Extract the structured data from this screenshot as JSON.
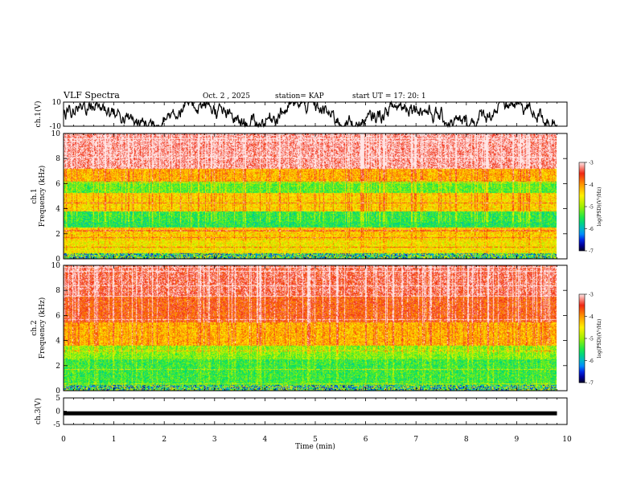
{
  "header": {
    "title": "VLF Spectra",
    "date": "Oct. 2 , 2025",
    "station": "station= KAP",
    "start": "start UT =  17: 20: 1"
  },
  "chart_data": [
    {
      "type": "line",
      "name": "ch1-waveform",
      "ylabel": "ch.1(V)",
      "ylim": [
        -10,
        10
      ],
      "yticks": [
        "10",
        "-10"
      ],
      "xlim": [
        0,
        10
      ]
    },
    {
      "type": "heatmap",
      "name": "ch1-spectrogram",
      "ylabel": "ch.1\nFrequency (kHz)",
      "ylabel_lines": [
        "ch.1",
        "Frequency (kHz)"
      ],
      "ylim": [
        0,
        10
      ],
      "yticks": [
        "0",
        "2",
        "4",
        "6",
        "8",
        "10"
      ],
      "xlim": [
        0,
        10
      ],
      "data_extent_min": 9.8,
      "colorbar": {
        "label": "log(PSD)(V²/Hz)",
        "ticks": [
          "-3",
          "-4",
          "-5",
          "-6",
          "-7"
        ],
        "range": [
          -7,
          -3
        ]
      },
      "bands_khz": [
        [
          0,
          0.5,
          -6.2
        ],
        [
          0.5,
          1.5,
          -4.6
        ],
        [
          1.5,
          2.5,
          -4.4
        ],
        [
          2.5,
          3.8,
          -5.6
        ],
        [
          3.8,
          5.3,
          -4.5
        ],
        [
          5.3,
          6.2,
          -5.4
        ],
        [
          6.2,
          7.2,
          -4.3
        ],
        [
          7.2,
          10,
          -3.3
        ]
      ]
    },
    {
      "type": "heatmap",
      "name": "ch2-spectrogram",
      "ylabel": "ch.2\nFrequency (kHz)",
      "ylabel_lines": [
        "ch.2",
        "Frequency (kHz)"
      ],
      "ylim": [
        0,
        10
      ],
      "yticks": [
        "0",
        "2",
        "4",
        "6",
        "8",
        "10"
      ],
      "xlim": [
        0,
        10
      ],
      "data_extent_min": 9.8,
      "colorbar": {
        "label": "log(PSD)(V²/Hz)",
        "ticks": [
          "-3",
          "-4",
          "-5",
          "-6",
          "-7"
        ],
        "range": [
          -7,
          -3
        ]
      },
      "bands_khz": [
        [
          0,
          0.5,
          -6.4
        ],
        [
          0.5,
          2.5,
          -5.5
        ],
        [
          2.5,
          3.6,
          -5.2
        ],
        [
          3.6,
          5.5,
          -4.3
        ],
        [
          5.5,
          7.5,
          -3.8
        ],
        [
          7.5,
          10,
          -3.5
        ]
      ]
    },
    {
      "type": "line",
      "name": "ch3-signal",
      "ylabel": "ch.3(V)",
      "ylim": [
        -5,
        5
      ],
      "yticks": [
        "5",
        "0",
        "-5"
      ],
      "xlim": [
        0,
        10
      ],
      "level_v": -0.8
    }
  ],
  "xaxis": {
    "label": "Time (min)",
    "ticks": [
      "0",
      "1",
      "2",
      "3",
      "4",
      "5",
      "6",
      "7",
      "8",
      "9",
      "10"
    ]
  },
  "colors": {
    "frame": "#000000",
    "line": "#000000",
    "background": "#ffffff"
  }
}
